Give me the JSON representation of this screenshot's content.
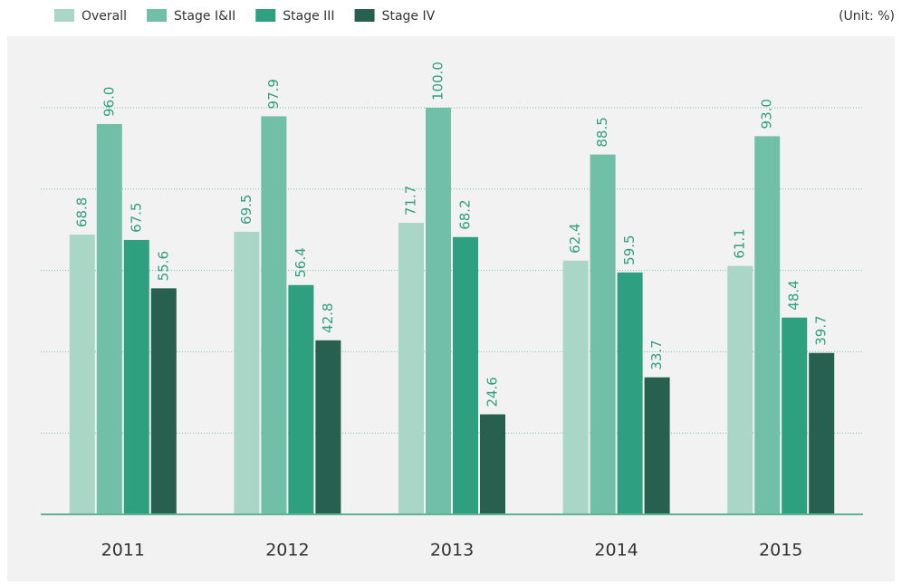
{
  "chart_data": {
    "type": "bar",
    "unit_note": "(Unit: %)",
    "categories": [
      "2011",
      "2012",
      "2013",
      "2014",
      "2015"
    ],
    "series": [
      {
        "name": "Overall",
        "color": "#a9d6c6",
        "values": [
          68.8,
          69.5,
          71.7,
          62.4,
          61.1
        ],
        "value_labels": [
          "68.8",
          "69.5",
          "71.7",
          "62.4",
          "61.1"
        ]
      },
      {
        "name": "Stage I&II",
        "color": "#70bfa6",
        "values": [
          96.0,
          97.9,
          100.0,
          88.5,
          93.0
        ],
        "value_labels": [
          "96.0",
          "97.9",
          "100.0",
          "88.5",
          "93.0"
        ]
      },
      {
        "name": "Stage III",
        "color": "#2fa07f",
        "values": [
          67.5,
          56.4,
          68.2,
          59.5,
          48.4
        ],
        "value_labels": [
          "67.5",
          "56.4",
          "68.2",
          "59.5",
          "48.4"
        ]
      },
      {
        "name": "Stage IV",
        "color": "#27604e",
        "values": [
          55.6,
          42.8,
          24.6,
          33.7,
          39.7
        ],
        "value_labels": [
          "55.6",
          "42.8",
          "24.6",
          "33.7",
          "39.7"
        ]
      }
    ],
    "ylim": [
      0,
      100
    ],
    "yticks": [
      0,
      20,
      40,
      60,
      80,
      100
    ],
    "grid": true,
    "legend": "top-left"
  }
}
